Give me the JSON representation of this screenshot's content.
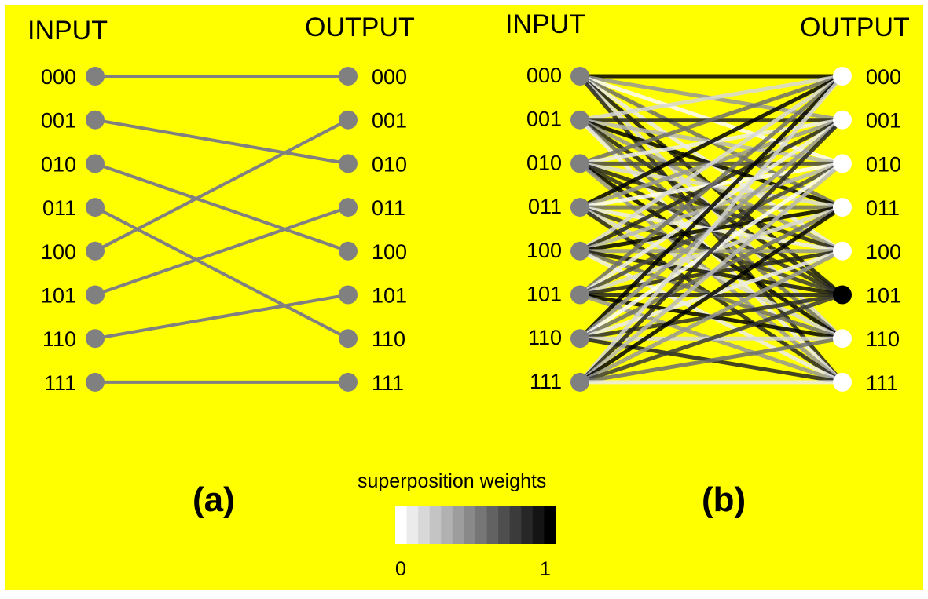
{
  "colors": {
    "background": "#ffff00",
    "node_a": "#808080",
    "edge_a": "#808080"
  },
  "panel_a": {
    "input_header": "INPUT",
    "output_header": "OUTPUT",
    "input_labels": [
      "000",
      "001",
      "010",
      "011",
      "100",
      "101",
      "110",
      "111"
    ],
    "output_labels": [
      "000",
      "001",
      "010",
      "011",
      "100",
      "101",
      "110",
      "111"
    ],
    "mapping": [
      0,
      2,
      4,
      6,
      1,
      3,
      5,
      7
    ],
    "panel_label": "(a)"
  },
  "panel_b": {
    "input_header": "INPUT",
    "output_header": "OUTPUT",
    "input_labels": [
      "000",
      "001",
      "010",
      "011",
      "100",
      "101",
      "110",
      "111"
    ],
    "output_labels": [
      "000",
      "001",
      "010",
      "011",
      "100",
      "101",
      "110",
      "111"
    ],
    "highlighted_output": "101",
    "panel_label": "(b)"
  },
  "legend": {
    "title": "superposition weights",
    "min_label": "0",
    "max_label": "1",
    "steps": 14
  }
}
